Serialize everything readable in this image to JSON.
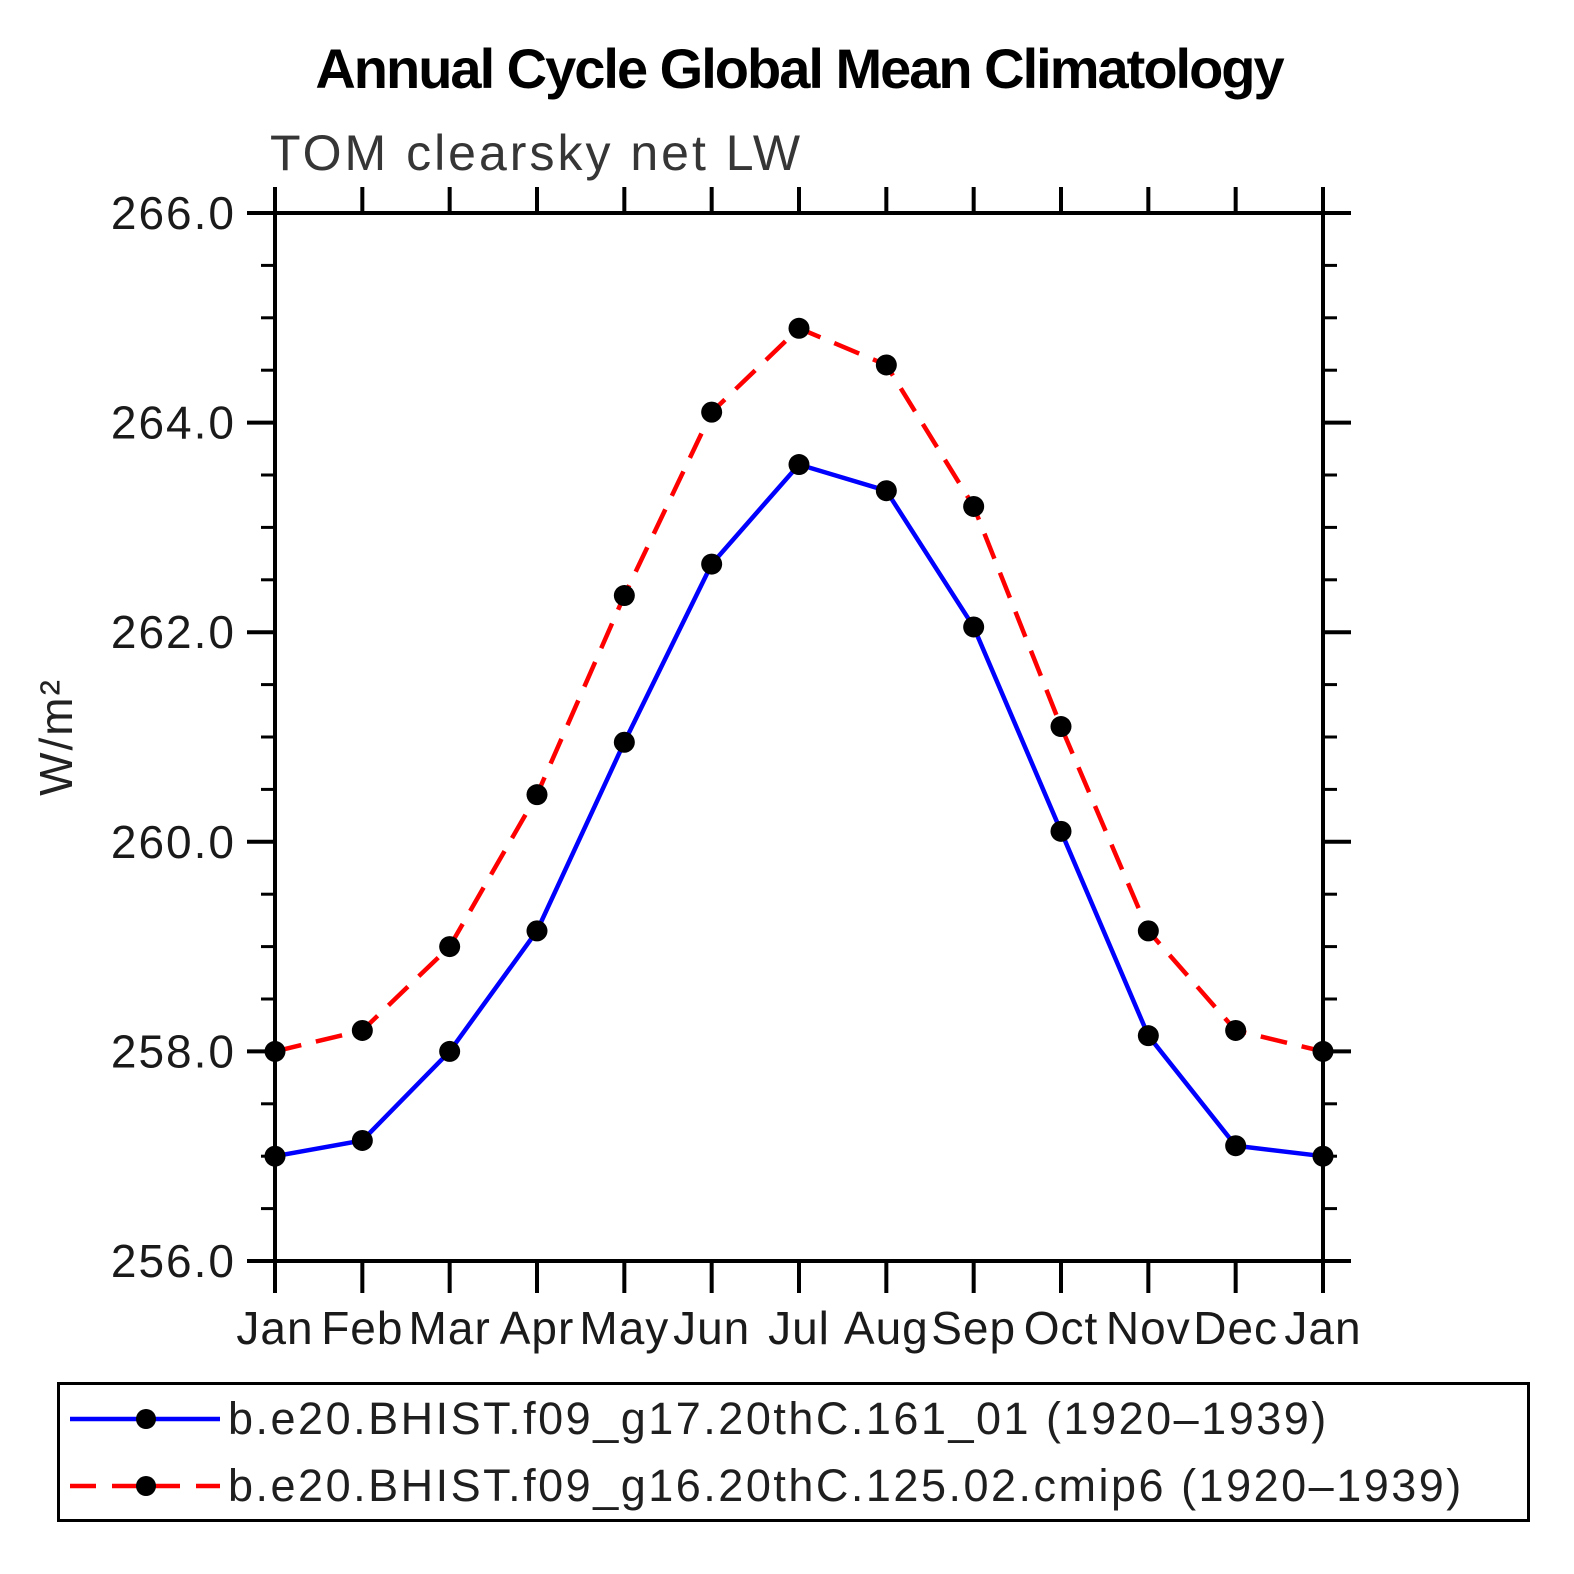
{
  "chart_data": {
    "type": "line",
    "title": "Annual Cycle Global Mean Climatology",
    "subtitle": "TOM clearsky net LW",
    "ylabel": "W/m²",
    "xlabel": "",
    "categories": [
      "Jan",
      "Feb",
      "Mar",
      "Apr",
      "May",
      "Jun",
      "Jul",
      "Aug",
      "Sep",
      "Oct",
      "Nov",
      "Dec",
      "Jan"
    ],
    "ylim": [
      256.0,
      266.0
    ],
    "ytick_major": 2.0,
    "ytick_minor": 0.5,
    "grid": false,
    "legend_position": "bottom",
    "marker": "filled-circle",
    "marker_color": "#000000",
    "axis_color": "#000000",
    "series": [
      {
        "name": "b.e20.BHIST.f09_g17.20thC.161_01 (1920–1939)",
        "color": "#0000ff",
        "line_style": "solid",
        "values": [
          257.0,
          257.15,
          258.0,
          259.15,
          260.95,
          262.65,
          263.6,
          263.35,
          262.05,
          260.1,
          258.15,
          257.1,
          257.0
        ]
      },
      {
        "name": "b.e20.BHIST.f09_g16.20thC.125.02.cmip6 (1920–1939)",
        "color": "#ff0000",
        "line_style": "dashed",
        "values": [
          258.0,
          258.2,
          259.0,
          260.45,
          262.35,
          264.1,
          264.9,
          264.55,
          263.2,
          261.1,
          259.15,
          258.2,
          258.0
        ]
      }
    ]
  }
}
